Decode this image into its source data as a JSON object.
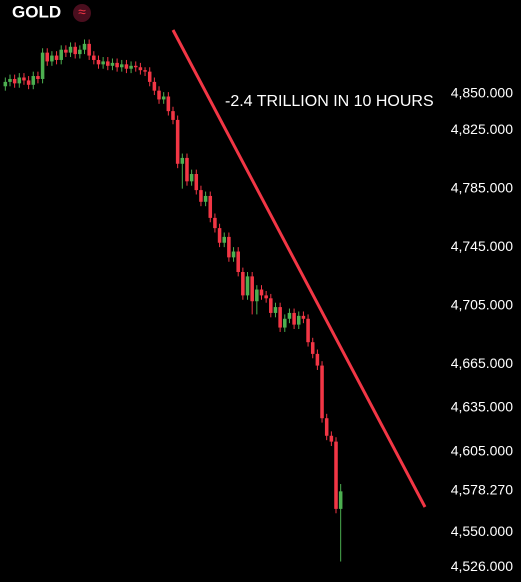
{
  "chart_data": {
    "type": "candlestick",
    "title": "GOLD",
    "symbol_icon": "≈",
    "annotation": "-2.4 TRILLION IN 10 HOURS",
    "up_color": "#4caf50",
    "down_color": "#f23645",
    "trend_color": "#f23645",
    "ylim": [
      4516,
      4914
    ],
    "yticks": [
      {
        "value": 4850,
        "label": "4,850.000"
      },
      {
        "value": 4825,
        "label": "4,825.000"
      },
      {
        "value": 4785,
        "label": "4,785.000"
      },
      {
        "value": 4745,
        "label": "4,745.000"
      },
      {
        "value": 4705,
        "label": "4,705.000"
      },
      {
        "value": 4665,
        "label": "4,665.000"
      },
      {
        "value": 4635,
        "label": "4,635.000"
      },
      {
        "value": 4605,
        "label": "4,605.000"
      },
      {
        "value": 4578.27,
        "label": "4,578.270"
      },
      {
        "value": 4550,
        "label": "4,550.000"
      },
      {
        "value": 4526,
        "label": "4,526.000"
      }
    ],
    "open": [
      4855,
      4858,
      4860,
      4857,
      4861,
      4859,
      4856,
      4862,
      4860,
      4878,
      4872,
      4876,
      4873,
      4880,
      4878,
      4882,
      4877,
      4880,
      4884,
      4876,
      4873,
      4870,
      4872,
      4869,
      4871,
      4868,
      4870,
      4867,
      4869,
      4868,
      4866,
      4865,
      4858,
      4852,
      4846,
      4848,
      4838,
      4832,
      4802,
      4806,
      4790,
      4795,
      4784,
      4776,
      4780,
      4765,
      4758,
      4748,
      4752,
      4738,
      4742,
      4728,
      4712,
      4725,
      4708,
      4716,
      4712,
      4710,
      4700,
      4704,
      4690,
      4696,
      4700,
      4692,
      4698,
      4696,
      4680,
      4672,
      4664,
      4628,
      4616,
      4612,
      4566
    ],
    "high": [
      4861,
      4863,
      4863,
      4864,
      4864,
      4862,
      4865,
      4865,
      4881,
      4881,
      4879,
      4879,
      4883,
      4883,
      4885,
      4885,
      4883,
      4887,
      4887,
      4879,
      4876,
      4875,
      4875,
      4874,
      4874,
      4873,
      4873,
      4872,
      4872,
      4871,
      4868,
      4868,
      4861,
      4855,
      4851,
      4851,
      4841,
      4835,
      4809,
      4809,
      4798,
      4798,
      4787,
      4783,
      4783,
      4768,
      4761,
      4755,
      4755,
      4745,
      4745,
      4731,
      4728,
      4728,
      4719,
      4719,
      4715,
      4713,
      4707,
      4707,
      4699,
      4703,
      4703,
      4701,
      4701,
      4699,
      4683,
      4675,
      4667,
      4631,
      4619,
      4615,
      4583
    ],
    "low": [
      4852,
      4855,
      4854,
      4854,
      4856,
      4853,
      4853,
      4857,
      4857,
      4869,
      4869,
      4870,
      4870,
      4875,
      4875,
      4874,
      4874,
      4877,
      4873,
      4870,
      4867,
      4867,
      4866,
      4866,
      4865,
      4865,
      4864,
      4864,
      4865,
      4863,
      4862,
      4855,
      4849,
      4843,
      4843,
      4835,
      4829,
      4799,
      4785,
      4787,
      4787,
      4781,
      4773,
      4773,
      4762,
      4755,
      4745,
      4745,
      4735,
      4735,
      4725,
      4709,
      4709,
      4699,
      4699,
      4709,
      4707,
      4697,
      4697,
      4687,
      4687,
      4693,
      4689,
      4689,
      4693,
      4677,
      4669,
      4661,
      4625,
      4613,
      4609,
      4563,
      4530
    ],
    "close": [
      4858,
      4860,
      4857,
      4861,
      4859,
      4856,
      4862,
      4860,
      4878,
      4872,
      4876,
      4873,
      4880,
      4878,
      4882,
      4877,
      4880,
      4884,
      4876,
      4873,
      4870,
      4872,
      4869,
      4871,
      4868,
      4870,
      4867,
      4869,
      4868,
      4866,
      4865,
      4858,
      4852,
      4846,
      4848,
      4838,
      4832,
      4802,
      4806,
      4790,
      4795,
      4784,
      4776,
      4780,
      4765,
      4758,
      4748,
      4752,
      4738,
      4742,
      4728,
      4712,
      4725,
      4708,
      4716,
      4712,
      4710,
      4700,
      4704,
      4690,
      4696,
      4700,
      4692,
      4698,
      4696,
      4680,
      4672,
      4664,
      4628,
      4616,
      4612,
      4566,
      4578
    ]
  }
}
